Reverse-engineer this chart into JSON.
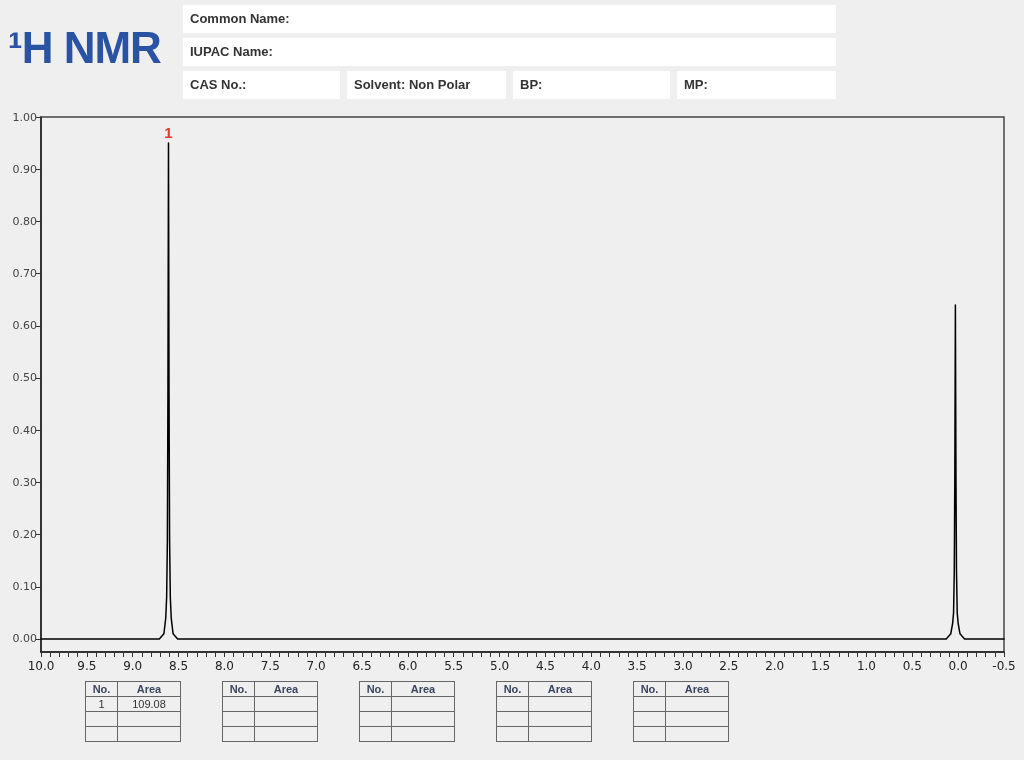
{
  "chart_data": {
    "type": "line",
    "title": "¹H NMR",
    "annotations": [
      "Common Name:",
      "IUPAC Name:",
      "CAS No.:",
      "Solvent: Non Polar",
      "BP:",
      "MP:",
      "No.",
      "Area",
      "No.",
      "Area",
      "No.",
      "Area",
      "No.",
      "Area",
      "No.",
      "Area",
      "1",
      "109.08",
      {
        "text": "1",
        "x": 8.61,
        "y": 0.95
      }
    ],
    "x": [
      10.0,
      8.71,
      8.66,
      8.64,
      8.63,
      8.622,
      8.616,
      8.61,
      8.604,
      8.598,
      8.59,
      8.58,
      8.56,
      8.51,
      0.13,
      0.08,
      0.06,
      0.05,
      0.042,
      0.036,
      0.03,
      0.024,
      0.018,
      0.01,
      0.0,
      -0.02,
      -0.07,
      -0.5
    ],
    "values": [
      0.0,
      0.0,
      0.01,
      0.04,
      0.08,
      0.19,
      0.47,
      0.95,
      0.47,
      0.19,
      0.08,
      0.04,
      0.01,
      0.0,
      0.0,
      0.01,
      0.03,
      0.05,
      0.13,
      0.32,
      0.64,
      0.32,
      0.13,
      0.05,
      0.03,
      0.01,
      0.0,
      0.0
    ],
    "color": "#000000",
    "xlim": [
      10.0,
      -0.5
    ],
    "xticks": [
      {
        "value": 10,
        "label": "10.0"
      },
      9.5,
      {
        "value": 9,
        "label": "9.0"
      },
      8.5,
      {
        "value": 8,
        "label": "8.0"
      },
      7.5,
      {
        "value": 7,
        "label": "7.0"
      },
      6.5,
      {
        "value": 6,
        "label": "6.0"
      },
      5.5,
      {
        "value": 5,
        "label": "5.0"
      },
      4.5,
      {
        "value": 4,
        "label": "4.0"
      },
      3.5,
      {
        "value": 3,
        "label": "3.0"
      },
      2.5,
      {
        "value": 2,
        "label": "2.0"
      },
      1.5,
      {
        "value": 1,
        "label": "1.0"
      },
      0.5,
      {
        "value": 0,
        "label": "0.0"
      },
      -0.5
    ],
    "ylim": [
      -0.025,
      1.0
    ],
    "yticks": [
      {
        "value": 0,
        "label": "0.00"
      },
      {
        "value": 0.1,
        "label": "0.10"
      },
      {
        "value": 0.2,
        "label": "0.20"
      },
      {
        "value": 0.3,
        "label": "0.30"
      },
      {
        "value": 0.4,
        "label": "0.40"
      },
      {
        "value": 0.5,
        "label": "0.50"
      },
      {
        "value": 0.6,
        "label": "0.60"
      },
      {
        "value": 0.7,
        "label": "0.70"
      },
      {
        "value": 0.8,
        "label": "0.80"
      },
      {
        "value": 0.9,
        "label": "0.90"
      },
      {
        "value": 1,
        "label": "1.00"
      }
    ]
  }
}
